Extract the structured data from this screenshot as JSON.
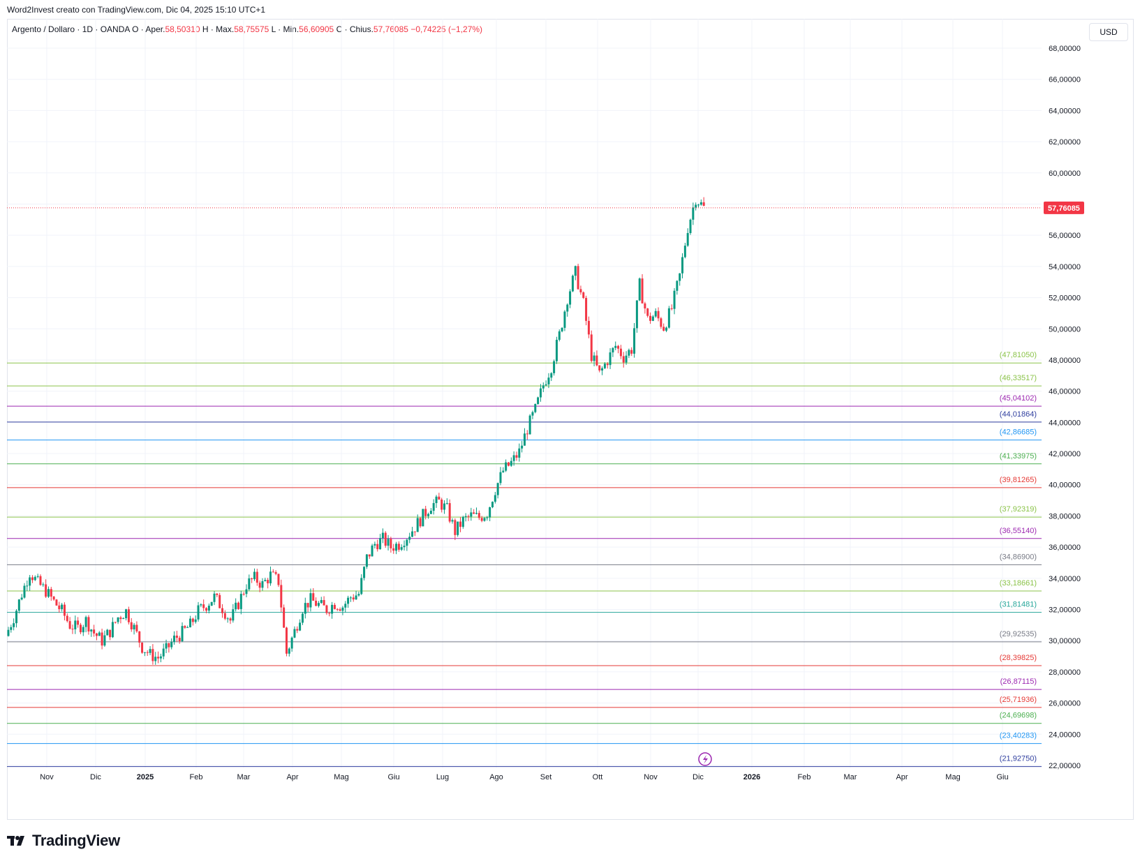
{
  "header": {
    "caption": "Word2Invest creato con TradingView.com, Dic 04, 2025 15:10 UTC+1"
  },
  "legend": {
    "symbol": "Argento / Dollaro · 1D · OANDA",
    "open_label": "O · Aper.",
    "open": "58,50310",
    "high_label": "H · Max.",
    "high": "58,75575",
    "low_label": "L · Min.",
    "low": "56,60905",
    "close_label": "C · Chius.",
    "close": "57,76085",
    "change": "−0,74225 (−1,27%)"
  },
  "currency": "USD",
  "brand": {
    "name": "TradingView"
  },
  "chart_data": {
    "type": "candlestick",
    "instrument": "Argento / Dollaro",
    "interval": "1D",
    "source": "OANDA",
    "y_axis": {
      "ticks": [
        "22,00000",
        "24,00000",
        "26,00000",
        "28,00000",
        "30,00000",
        "32,00000",
        "34,00000",
        "36,00000",
        "38,00000",
        "40,00000",
        "42,00000",
        "44,00000",
        "46,00000",
        "48,00000",
        "50,00000",
        "52,00000",
        "54,00000",
        "56,00000",
        "58,00000",
        "60,00000",
        "62,00000",
        "64,00000",
        "66,00000",
        "68,00000"
      ],
      "range": [
        22,
        68.5
      ]
    },
    "x_axis": {
      "ticks": [
        "Nov",
        "Dic",
        "2025",
        "Feb",
        "Mar",
        "Apr",
        "Mag",
        "Giu",
        "Lug",
        "Ago",
        "Set",
        "Ott",
        "Nov",
        "Dic",
        "2026",
        "Feb",
        "Mar",
        "Apr",
        "Mag",
        "Giu"
      ]
    },
    "last_price": {
      "value": 57.76085,
      "label": "57,76085",
      "color": "#f23645"
    },
    "horizontal_levels": [
      {
        "value": 47.8105,
        "label": "(47,81050)",
        "color": "#8bc34a"
      },
      {
        "value": 46.33517,
        "label": "(46,33517)",
        "color": "#8bc34a"
      },
      {
        "value": 45.04102,
        "label": "(45,04102)",
        "color": "#9c27b0"
      },
      {
        "value": 44.01864,
        "label": "(44,01864)",
        "color": "#303f9f"
      },
      {
        "value": 42.86685,
        "label": "(42,86685)",
        "color": "#2196f3"
      },
      {
        "value": 41.33975,
        "label": "(41,33975)",
        "color": "#4caf50"
      },
      {
        "value": 39.81265,
        "label": "(39,81265)",
        "color": "#e53935"
      },
      {
        "value": 37.92319,
        "label": "(37,92319)",
        "color": "#8bc34a"
      },
      {
        "value": 36.5514,
        "label": "(36,55140)",
        "color": "#9c27b0"
      },
      {
        "value": 34.869,
        "label": "(34,86900)",
        "color": "#787b86"
      },
      {
        "value": 33.18661,
        "label": "(33,18661)",
        "color": "#8bc34a"
      },
      {
        "value": 31.81481,
        "label": "(31,81481)",
        "color": "#26a69a"
      },
      {
        "value": 29.92535,
        "label": "(29,92535)",
        "color": "#787b86"
      },
      {
        "value": 28.39825,
        "label": "(28,39825)",
        "color": "#e53935"
      },
      {
        "value": 26.87115,
        "label": "(26,87115)",
        "color": "#9c27b0"
      },
      {
        "value": 25.71936,
        "label": "(25,71936)",
        "color": "#e53935"
      },
      {
        "value": 24.69698,
        "label": "(24,69698)",
        "color": "#4caf50"
      },
      {
        "value": 23.40283,
        "label": "(23,40283)",
        "color": "#2196f3"
      },
      {
        "value": 21.9275,
        "label": "(21,92750)",
        "color": "#303f9f"
      }
    ],
    "price_path": [
      [
        "Ott",
        30.3
      ],
      [
        "Ott",
        31.5
      ],
      [
        "Ott",
        33.0
      ],
      [
        "Ott",
        34.4
      ],
      [
        "Ott",
        33.7
      ],
      [
        "Ott",
        33.2
      ],
      [
        "Ott",
        32.5
      ],
      [
        "Nov",
        31.9
      ],
      [
        "Nov",
        31.0
      ],
      [
        "Nov",
        30.8
      ],
      [
        "Nov",
        31.3
      ],
      [
        "Nov",
        30.5
      ],
      [
        "Dic",
        30.0
      ],
      [
        "Dic",
        30.6
      ],
      [
        "Dic",
        31.5
      ],
      [
        "Dic",
        31.9
      ],
      [
        "Dic",
        30.8
      ],
      [
        "Dic",
        29.6
      ],
      [
        "Dic",
        29.1
      ],
      [
        "Dic",
        28.9
      ],
      [
        "2025",
        29.4
      ],
      [
        "2025",
        30.1
      ],
      [
        "2025",
        30.5
      ],
      [
        "Feb",
        31.0
      ],
      [
        "Feb",
        31.9
      ],
      [
        "Feb",
        32.3
      ],
      [
        "Feb",
        32.8
      ],
      [
        "Mar",
        32.1
      ],
      [
        "Mar",
        31.3
      ],
      [
        "Mar",
        32.4
      ],
      [
        "Mar",
        33.6
      ],
      [
        "Mar",
        34.0
      ],
      [
        "Apr",
        33.6
      ],
      [
        "Apr",
        34.2
      ],
      [
        "Apr",
        33.8
      ],
      [
        "Apr",
        29.2
      ],
      [
        "Apr",
        30.6
      ],
      [
        "Apr",
        32.1
      ],
      [
        "Mag",
        32.6
      ],
      [
        "Mag",
        32.3
      ],
      [
        "Mag",
        32.0
      ],
      [
        "Mag",
        32.4
      ],
      [
        "Mag",
        32.2
      ],
      [
        "Mag",
        32.8
      ],
      [
        "Giu",
        33.0
      ],
      [
        "Giu",
        35.3
      ],
      [
        "Giu",
        36.2
      ],
      [
        "Giu",
        36.5
      ],
      [
        "Giu",
        36.0
      ],
      [
        "Lug",
        36.2
      ],
      [
        "Lug",
        36.7
      ],
      [
        "Lug",
        37.3
      ],
      [
        "Lug",
        38.0
      ],
      [
        "Lug",
        38.7
      ],
      [
        "Lug",
        38.9
      ],
      [
        "Lug",
        38.4
      ],
      [
        "Ago",
        37.0
      ],
      [
        "Ago",
        37.7
      ],
      [
        "Ago",
        38.0
      ],
      [
        "Ago",
        37.9
      ],
      [
        "Set",
        38.2
      ],
      [
        "Set",
        39.7
      ],
      [
        "Set",
        40.9
      ],
      [
        "Set",
        41.4
      ],
      [
        "Set",
        42.1
      ],
      [
        "Set",
        43.6
      ],
      [
        "Set",
        44.8
      ],
      [
        "Ott",
        46.4
      ],
      [
        "Ott",
        47.6
      ],
      [
        "Ott",
        49.6
      ],
      [
        "Ott",
        52.0
      ],
      [
        "Ott",
        53.6
      ],
      [
        "Ott",
        51.6
      ],
      [
        "Ott",
        48.3
      ],
      [
        "Ott",
        47.1
      ],
      [
        "Nov",
        48.0
      ],
      [
        "Nov",
        48.9
      ],
      [
        "Nov",
        48.2
      ],
      [
        "Nov",
        48.7
      ],
      [
        "Nov",
        52.8
      ],
      [
        "Nov",
        50.6
      ],
      [
        "Nov",
        50.9
      ],
      [
        "Nov",
        50.1
      ],
      [
        "Nov",
        51.3
      ],
      [
        "Nov",
        53.4
      ],
      [
        "Dic",
        56.5
      ],
      [
        "Dic",
        58.4
      ],
      [
        "Dic",
        57.76
      ]
    ]
  }
}
